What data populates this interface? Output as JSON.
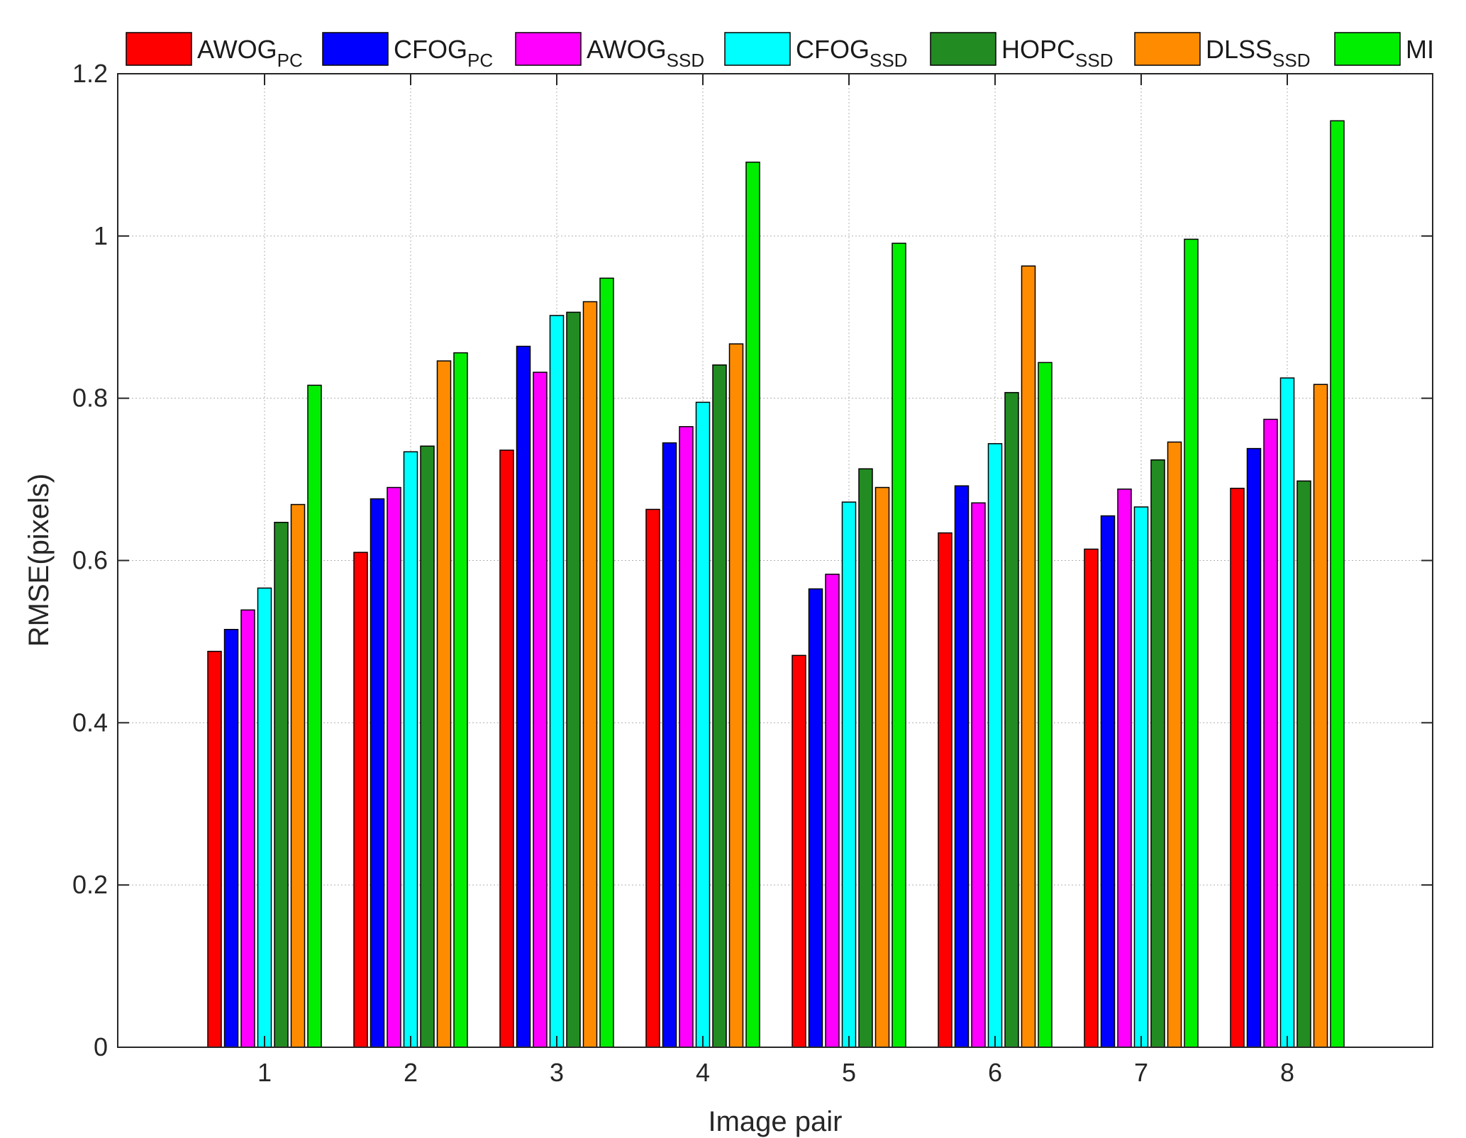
{
  "chart_data": {
    "type": "bar",
    "title": "",
    "xlabel": "Image pair",
    "ylabel": "RMSE(pixels)",
    "ylim": [
      0,
      1.2
    ],
    "yticks": [
      0,
      0.2,
      0.4,
      0.6,
      0.8,
      1,
      1.2
    ],
    "ytick_labels": [
      "0",
      "0.2",
      "0.4",
      "0.6",
      "0.8",
      "1",
      "1.2"
    ],
    "grid": true,
    "legend_position": "top",
    "categories": [
      "1",
      "2",
      "3",
      "4",
      "5",
      "6",
      "7",
      "8"
    ],
    "series": [
      {
        "name": "AWOG",
        "sub": "PC",
        "color": "#ff0000",
        "values": [
          0.488,
          0.61,
          0.736,
          0.663,
          0.483,
          0.634,
          0.614,
          0.689
        ]
      },
      {
        "name": "CFOG",
        "sub": "PC",
        "color": "#0000ff",
        "values": [
          0.515,
          0.676,
          0.864,
          0.745,
          0.565,
          0.692,
          0.655,
          0.738
        ]
      },
      {
        "name": "AWOG",
        "sub": "SSD",
        "color": "#ff00ff",
        "values": [
          0.539,
          0.69,
          0.832,
          0.765,
          0.583,
          0.671,
          0.688,
          0.774
        ]
      },
      {
        "name": "CFOG",
        "sub": "SSD",
        "color": "#00ffff",
        "values": [
          0.566,
          0.734,
          0.902,
          0.795,
          0.672,
          0.744,
          0.666,
          0.825
        ]
      },
      {
        "name": "HOPC",
        "sub": "SSD",
        "color": "#228b22",
        "values": [
          0.647,
          0.741,
          0.906,
          0.841,
          0.713,
          0.807,
          0.724,
          0.698
        ]
      },
      {
        "name": "DLSS",
        "sub": "SSD",
        "color": "#ff8c00",
        "values": [
          0.669,
          0.846,
          0.919,
          0.867,
          0.69,
          0.963,
          0.746,
          0.817
        ]
      },
      {
        "name": "MI",
        "sub": "",
        "color": "#00ee00",
        "values": [
          0.816,
          0.856,
          0.948,
          1.091,
          0.991,
          0.844,
          0.996,
          1.142
        ]
      }
    ]
  }
}
